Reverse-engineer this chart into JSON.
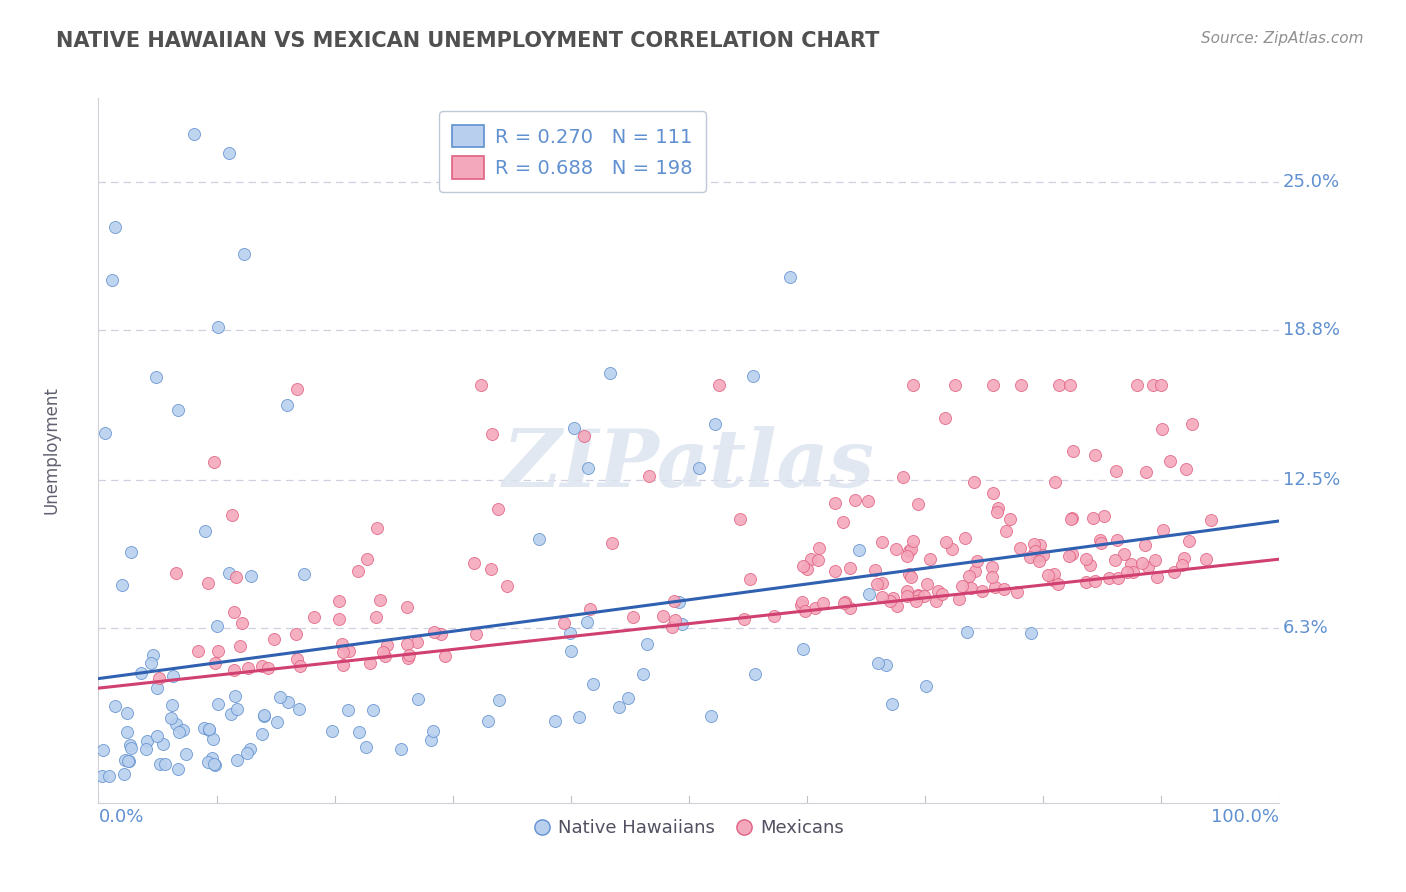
{
  "title": "NATIVE HAWAIIAN VS MEXICAN UNEMPLOYMENT CORRELATION CHART",
  "source": "Source: ZipAtlas.com",
  "ylabel": "Unemployment",
  "x_min": 0.0,
  "x_max": 1.0,
  "y_min": -0.01,
  "y_max": 0.285,
  "y_ticks": [
    0.063,
    0.125,
    0.188,
    0.25
  ],
  "y_tick_labels": [
    "6.3%",
    "12.5%",
    "18.8%",
    "25.0%"
  ],
  "nh_R": 0.27,
  "nh_N": 111,
  "mex_R": 0.688,
  "mex_N": 198,
  "nh_color": "#b8d0ee",
  "mex_color": "#f4a8bc",
  "nh_edge_color": "#6090d0",
  "mex_edge_color": "#e06080",
  "nh_line_color": "#3060b0",
  "mex_line_color": "#d04070",
  "title_color": "#505050",
  "source_color": "#909090",
  "tick_label_color": "#6090d0",
  "grid_color": "#d0d0e0",
  "background_color": "#ffffff",
  "legend_border_color": "#c0c8d8",
  "nh_line_start_y": 0.042,
  "nh_line_end_y": 0.108,
  "mex_line_start_y": 0.038,
  "mex_line_end_y": 0.092
}
